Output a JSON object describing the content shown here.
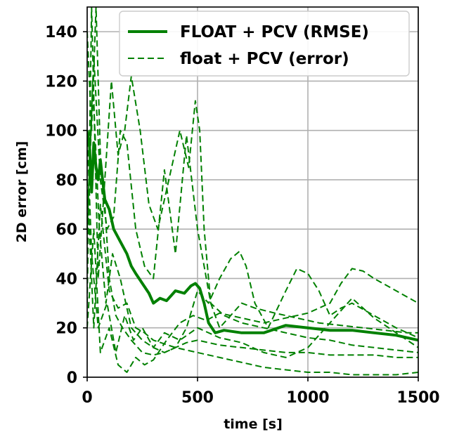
{
  "chart_data": {
    "type": "line",
    "title": "",
    "xlabel": "time [s]",
    "ylabel": "2D error [cm]",
    "xlim": [
      0,
      1500
    ],
    "ylim": [
      0,
      150
    ],
    "xticks": [
      0,
      500,
      1000,
      1500
    ],
    "yticks": [
      0,
      20,
      40,
      60,
      80,
      100,
      120,
      140
    ],
    "grid": true,
    "legend_position": "top-right",
    "color": "#008000",
    "series": [
      {
        "name": "FLOAT + PCV (RMSE)",
        "style": "solid",
        "x": [
          0,
          10,
          20,
          30,
          40,
          50,
          60,
          80,
          100,
          120,
          150,
          180,
          200,
          220,
          250,
          280,
          300,
          330,
          360,
          400,
          440,
          470,
          490,
          510,
          530,
          550,
          580,
          620,
          700,
          800,
          900,
          1000,
          1100,
          1200,
          1300,
          1400,
          1500
        ],
        "y": [
          100,
          95,
          75,
          95,
          85,
          80,
          88,
          72,
          68,
          60,
          55,
          50,
          45,
          42,
          38,
          34,
          30,
          32,
          31,
          35,
          34,
          37,
          38,
          36,
          30,
          22,
          18,
          19,
          18,
          18,
          21,
          20,
          19,
          19,
          18,
          17,
          15
        ]
      },
      {
        "name": "float + PCV (error)",
        "style": "dashed",
        "x": [
          0,
          20,
          40,
          60,
          80,
          100,
          130,
          160,
          200,
          250,
          300,
          350,
          400,
          450,
          500,
          550,
          600,
          700,
          800,
          900,
          1000,
          1100,
          1200,
          1300,
          1400,
          1500
        ],
        "y": [
          140,
          100,
          150,
          90,
          70,
          40,
          25,
          20,
          15,
          10,
          9,
          10,
          12,
          14,
          15,
          14,
          13,
          12,
          11,
          10,
          10,
          9,
          9,
          9,
          8,
          8
        ]
      },
      {
        "name": "",
        "style": "dashed",
        "x": [
          0,
          30,
          60,
          90,
          120,
          150,
          180,
          220,
          260,
          300,
          350,
          400,
          450,
          500,
          560,
          620,
          700,
          800,
          900,
          1000,
          1100,
          1200,
          1300,
          1400,
          1500
        ],
        "y": [
          60,
          130,
          80,
          60,
          65,
          100,
          95,
          60,
          45,
          40,
          84,
          50,
          98,
          60,
          30,
          25,
          22,
          20,
          18,
          16,
          15,
          13,
          12,
          11,
          10
        ]
      },
      {
        "name": "",
        "style": "dashed",
        "x": [
          0,
          20,
          50,
          80,
          110,
          140,
          170,
          200,
          240,
          280,
          320,
          370,
          420,
          460,
          490,
          510,
          530,
          560,
          600,
          650,
          700,
          760,
          850,
          950,
          1050,
          1150,
          1250,
          1350,
          1450,
          1500
        ],
        "y": [
          30,
          150,
          40,
          80,
          120,
          90,
          100,
          122,
          100,
          70,
          60,
          80,
          100,
          85,
          112,
          100,
          60,
          30,
          20,
          25,
          30,
          28,
          26,
          24,
          22,
          21,
          20,
          19,
          18,
          18
        ]
      },
      {
        "name": "",
        "style": "dashed",
        "x": [
          0,
          25,
          55,
          85,
          115,
          150,
          200,
          250,
          300,
          350,
          400,
          450,
          500,
          550,
          600,
          650,
          690,
          720,
          760,
          820,
          900,
          950,
          1000,
          1050,
          1100,
          1150,
          1200,
          1300,
          1400,
          1500
        ],
        "y": [
          50,
          120,
          60,
          30,
          50,
          40,
          20,
          15,
          12,
          10,
          12,
          20,
          35,
          30,
          40,
          48,
          51,
          45,
          30,
          20,
          35,
          44,
          42,
          35,
          25,
          28,
          30,
          25,
          20,
          16
        ]
      },
      {
        "name": "",
        "style": "dashed",
        "x": [
          0,
          30,
          60,
          100,
          140,
          180,
          220,
          260,
          300,
          360,
          420,
          480,
          540,
          600,
          700,
          800,
          900,
          1000,
          1100,
          1150,
          1200,
          1250,
          1300,
          1400,
          1500
        ],
        "y": [
          20,
          60,
          10,
          20,
          5,
          2,
          8,
          5,
          7,
          15,
          22,
          25,
          23,
          26,
          24,
          22,
          24,
          26,
          30,
          38,
          44,
          43,
          40,
          35,
          30
        ]
      },
      {
        "name": "",
        "style": "dashed",
        "x": [
          0,
          20,
          50,
          90,
          130,
          170,
          210,
          250,
          300,
          350,
          420,
          500,
          600,
          700,
          800,
          900,
          1000,
          1100,
          1200,
          1300,
          1400,
          1500
        ],
        "y": [
          100,
          50,
          20,
          30,
          10,
          25,
          15,
          20,
          12,
          18,
          15,
          20,
          16,
          14,
          10,
          8,
          12,
          22,
          32,
          24,
          18,
          12
        ]
      },
      {
        "name": "",
        "style": "dashed",
        "x": [
          0,
          30,
          60,
          100,
          140,
          180,
          220,
          260,
          300,
          400,
          500,
          600,
          700,
          800,
          900,
          1000,
          1100,
          1200,
          1300,
          1400,
          1500
        ],
        "y": [
          80,
          20,
          70,
          35,
          28,
          30,
          20,
          18,
          15,
          12,
          10,
          8,
          6,
          4,
          3,
          2,
          2,
          1,
          1,
          1,
          2
        ]
      }
    ]
  }
}
